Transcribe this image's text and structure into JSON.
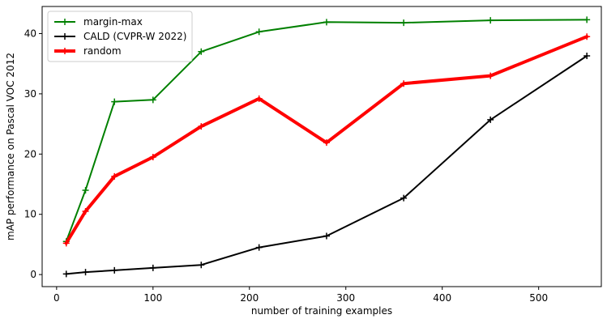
{
  "chart_data": {
    "type": "line",
    "title": "",
    "xlabel": "number of training examples",
    "ylabel": "mAP performance on Pascal VOC 2012",
    "xlim": [
      -15,
      565
    ],
    "ylim": [
      -2,
      44.5
    ],
    "xticks": [
      0,
      100,
      200,
      300,
      400,
      500
    ],
    "yticks": [
      0,
      10,
      20,
      30,
      40
    ],
    "grid": false,
    "legend_position": "top-left",
    "series": [
      {
        "name": "margin-max",
        "color": "#008000",
        "line_width": 2,
        "marker": "+",
        "x": [
          10,
          30,
          60,
          100,
          150,
          210,
          280,
          360,
          450,
          550
        ],
        "y": [
          5.5,
          14.0,
          28.7,
          29.0,
          37.0,
          40.3,
          41.9,
          41.8,
          42.2,
          42.3
        ]
      },
      {
        "name": "CALD (CVPR-W 2022)",
        "color": "#000000",
        "line_width": 2,
        "marker": "+",
        "x": [
          10,
          30,
          60,
          100,
          150,
          210,
          280,
          360,
          450,
          550
        ],
        "y": [
          0.1,
          0.4,
          0.7,
          1.1,
          1.6,
          4.5,
          6.4,
          12.7,
          25.7,
          36.3
        ]
      },
      {
        "name": "random",
        "color": "#ff0000",
        "line_width": 4,
        "marker": "+",
        "x": [
          10,
          30,
          60,
          100,
          150,
          210,
          280,
          360,
          450,
          550
        ],
        "y": [
          5.2,
          10.5,
          16.3,
          19.5,
          24.6,
          29.2,
          21.9,
          31.7,
          33.0,
          39.5
        ]
      }
    ]
  }
}
